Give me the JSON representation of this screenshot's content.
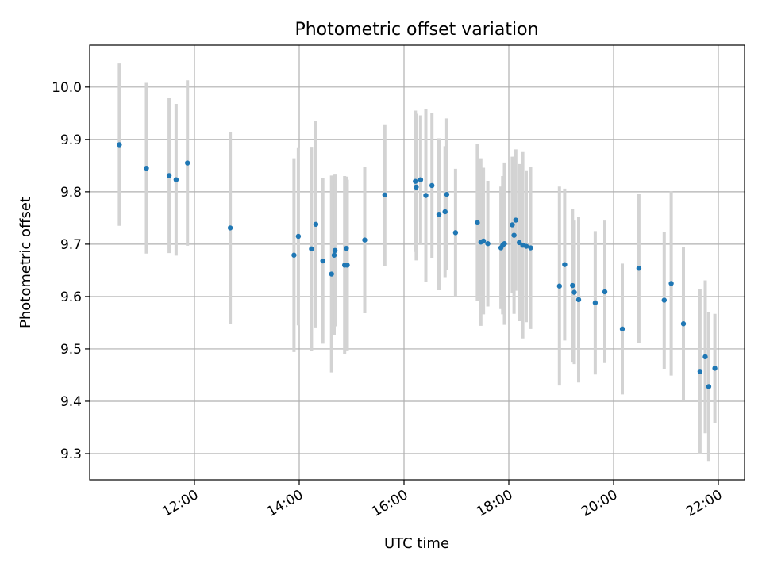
{
  "chart_data": {
    "type": "scatter",
    "title": "Photometric offset variation",
    "xlabel": "UTC time",
    "ylabel": "Photometric offset",
    "xlim": [
      "10:00",
      "22:30"
    ],
    "ylim": [
      9.25,
      10.08
    ],
    "x_ticks": [
      "12:00",
      "14:00",
      "16:00",
      "18:00",
      "20:00",
      "22:00"
    ],
    "y_ticks": [
      "9.3",
      "9.4",
      "9.5",
      "9.6",
      "9.7",
      "9.8",
      "9.9",
      "10.0"
    ],
    "grid": true,
    "colors": {
      "point": "#1f77b4",
      "errorbar": "#d3d3d3",
      "grid": "#b0b0b0"
    },
    "points": [
      {
        "x": "10:34",
        "y": 9.89,
        "err": 0.155
      },
      {
        "x": "11:05",
        "y": 9.845,
        "err": 0.163
      },
      {
        "x": "11:31",
        "y": 9.831,
        "err": 0.148
      },
      {
        "x": "11:39",
        "y": 9.823,
        "err": 0.145
      },
      {
        "x": "11:52",
        "y": 9.855,
        "err": 0.158
      },
      {
        "x": "12:41",
        "y": 9.731,
        "err": 0.183
      },
      {
        "x": "13:54",
        "y": 9.679,
        "err": 0.185
      },
      {
        "x": "13:59",
        "y": 9.715,
        "err": 0.17
      },
      {
        "x": "14:14",
        "y": 9.691,
        "err": 0.195
      },
      {
        "x": "14:19",
        "y": 9.738,
        "err": 0.197
      },
      {
        "x": "14:27",
        "y": 9.668,
        "err": 0.158
      },
      {
        "x": "14:37",
        "y": 9.643,
        "err": 0.188
      },
      {
        "x": "14:40",
        "y": 9.679,
        "err": 0.153
      },
      {
        "x": "14:41",
        "y": 9.688,
        "err": 0.145
      },
      {
        "x": "14:52",
        "y": 9.66,
        "err": 0.17
      },
      {
        "x": "14:55",
        "y": 9.66,
        "err": 0.163
      },
      {
        "x": "14:54",
        "y": 9.692,
        "err": 0.137
      },
      {
        "x": "15:15",
        "y": 9.708,
        "err": 0.14
      },
      {
        "x": "15:38",
        "y": 9.794,
        "err": 0.135
      },
      {
        "x": "16:13",
        "y": 9.82,
        "err": 0.135
      },
      {
        "x": "16:14",
        "y": 9.809,
        "err": 0.14
      },
      {
        "x": "16:19",
        "y": 9.823,
        "err": 0.123
      },
      {
        "x": "16:25",
        "y": 9.793,
        "err": 0.165
      },
      {
        "x": "16:32",
        "y": 9.812,
        "err": 0.138
      },
      {
        "x": "16:40",
        "y": 9.757,
        "err": 0.145
      },
      {
        "x": "16:47",
        "y": 9.762,
        "err": 0.125
      },
      {
        "x": "16:49",
        "y": 9.795,
        "err": 0.145
      },
      {
        "x": "16:59",
        "y": 9.722,
        "err": 0.122
      },
      {
        "x": "17:24",
        "y": 9.741,
        "err": 0.15
      },
      {
        "x": "17:28",
        "y": 9.704,
        "err": 0.16
      },
      {
        "x": "17:31",
        "y": 9.706,
        "err": 0.14
      },
      {
        "x": "17:36",
        "y": 9.701,
        "err": 0.12
      },
      {
        "x": "17:51",
        "y": 9.693,
        "err": 0.117
      },
      {
        "x": "17:53",
        "y": 9.698,
        "err": 0.132
      },
      {
        "x": "17:55",
        "y": 9.701,
        "err": 0.155
      },
      {
        "x": "18:04",
        "y": 9.737,
        "err": 0.13
      },
      {
        "x": "18:06",
        "y": 9.717,
        "err": 0.15
      },
      {
        "x": "18:08",
        "y": 9.746,
        "err": 0.135
      },
      {
        "x": "18:12",
        "y": 9.703,
        "err": 0.15
      },
      {
        "x": "18:16",
        "y": 9.698,
        "err": 0.178
      },
      {
        "x": "18:20",
        "y": 9.696,
        "err": 0.145
      },
      {
        "x": "18:25",
        "y": 9.693,
        "err": 0.155
      },
      {
        "x": "18:58",
        "y": 9.62,
        "err": 0.19
      },
      {
        "x": "19:04",
        "y": 9.661,
        "err": 0.145
      },
      {
        "x": "19:13",
        "y": 9.621,
        "err": 0.147
      },
      {
        "x": "19:15",
        "y": 9.608,
        "err": 0.137
      },
      {
        "x": "19:20",
        "y": 9.594,
        "err": 0.158
      },
      {
        "x": "19:39",
        "y": 9.588,
        "err": 0.137
      },
      {
        "x": "19:50",
        "y": 9.609,
        "err": 0.136
      },
      {
        "x": "20:10",
        "y": 9.538,
        "err": 0.125
      },
      {
        "x": "20:29",
        "y": 9.654,
        "err": 0.142
      },
      {
        "x": "20:58",
        "y": 9.593,
        "err": 0.131
      },
      {
        "x": "21:06",
        "y": 9.625,
        "err": 0.176
      },
      {
        "x": "21:20",
        "y": 9.548,
        "err": 0.146
      },
      {
        "x": "21:39",
        "y": 9.457,
        "err": 0.158
      },
      {
        "x": "21:45",
        "y": 9.485,
        "err": 0.146
      },
      {
        "x": "21:49",
        "y": 9.428,
        "err": 0.142
      },
      {
        "x": "21:56",
        "y": 9.463,
        "err": 0.104
      }
    ]
  }
}
